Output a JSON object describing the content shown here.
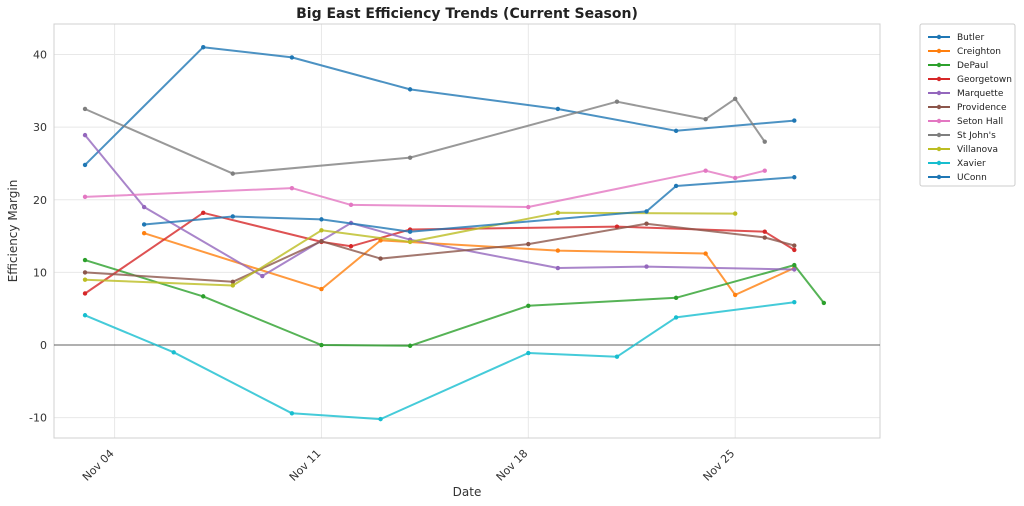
{
  "chart_data": {
    "type": "line",
    "title": "Big East Efficiency Trends (Current Season)",
    "xlabel": "Date",
    "ylabel": "Efficiency Margin",
    "x_unit": "day of November",
    "xlim": [
      1.95,
      29.9
    ],
    "ylim": [
      -12.8,
      44.2
    ],
    "xticks": [
      {
        "value": 4,
        "label": "Nov 04"
      },
      {
        "value": 11,
        "label": "Nov 11"
      },
      {
        "value": 18,
        "label": "Nov 18"
      },
      {
        "value": 25,
        "label": "Nov 25"
      }
    ],
    "yticks": [
      -10,
      0,
      10,
      20,
      30,
      40
    ],
    "grid": true,
    "zero_line": true,
    "legend_position": "outside right",
    "series": [
      {
        "name": "Butler",
        "color": "#1f77b4",
        "points": [
          [
            3,
            24.8
          ],
          [
            7,
            41.0
          ],
          [
            10,
            39.6
          ],
          [
            14,
            35.2
          ],
          [
            19,
            32.5
          ],
          [
            23,
            29.5
          ],
          [
            27,
            30.9
          ]
        ]
      },
      {
        "name": "Creighton",
        "color": "#ff7f0e",
        "points": [
          [
            5,
            15.4
          ],
          [
            11,
            7.7
          ],
          [
            13,
            14.4
          ],
          [
            19,
            13.0
          ],
          [
            24,
            12.6
          ],
          [
            25,
            6.9
          ],
          [
            27,
            10.6
          ]
        ]
      },
      {
        "name": "DePaul",
        "color": "#2ca02c",
        "points": [
          [
            3,
            11.7
          ],
          [
            7,
            6.7
          ],
          [
            11,
            0.0
          ],
          [
            14,
            -0.1
          ],
          [
            18,
            5.4
          ],
          [
            23,
            6.5
          ],
          [
            27,
            11.0
          ],
          [
            28,
            5.8
          ]
        ]
      },
      {
        "name": "Georgetown",
        "color": "#d62728",
        "points": [
          [
            3,
            7.1
          ],
          [
            7,
            18.2
          ],
          [
            11,
            14.2
          ],
          [
            12,
            13.6
          ],
          [
            14,
            15.9
          ],
          [
            21,
            16.3
          ],
          [
            26,
            15.6
          ],
          [
            27,
            13.1
          ]
        ]
      },
      {
        "name": "Marquette",
        "color": "#9467bd",
        "points": [
          [
            3,
            28.9
          ],
          [
            5,
            19.0
          ],
          [
            9,
            9.5
          ],
          [
            12,
            16.8
          ],
          [
            14,
            14.5
          ],
          [
            19,
            10.6
          ],
          [
            22,
            10.8
          ],
          [
            27,
            10.4
          ]
        ]
      },
      {
        "name": "Providence",
        "color": "#8c564b",
        "points": [
          [
            3,
            10.0
          ],
          [
            8,
            8.7
          ],
          [
            11,
            14.3
          ],
          [
            13,
            11.9
          ],
          [
            18,
            13.9
          ],
          [
            22,
            16.7
          ],
          [
            26,
            14.8
          ],
          [
            27,
            13.7
          ]
        ]
      },
      {
        "name": "Seton Hall",
        "color": "#e377c2",
        "points": [
          [
            3,
            20.4
          ],
          [
            10,
            21.6
          ],
          [
            12,
            19.3
          ],
          [
            18,
            19.0
          ],
          [
            24,
            24.0
          ],
          [
            25,
            23.0
          ],
          [
            26,
            24.0
          ]
        ]
      },
      {
        "name": "St John's",
        "color": "#7f7f7f",
        "points": [
          [
            3,
            32.5
          ],
          [
            8,
            23.6
          ],
          [
            14,
            25.8
          ],
          [
            21,
            33.5
          ],
          [
            24,
            31.1
          ],
          [
            25,
            33.9
          ],
          [
            26,
            28.0
          ]
        ]
      },
      {
        "name": "Villanova",
        "color": "#bcbd22",
        "points": [
          [
            3,
            9.0
          ],
          [
            8,
            8.2
          ],
          [
            11,
            15.8
          ],
          [
            14,
            14.2
          ],
          [
            19,
            18.2
          ],
          [
            25,
            18.1
          ]
        ]
      },
      {
        "name": "Xavier",
        "color": "#17becf",
        "points": [
          [
            3,
            4.1
          ],
          [
            6,
            -1.0
          ],
          [
            10,
            -9.4
          ],
          [
            13,
            -10.2
          ],
          [
            18,
            -1.1
          ],
          [
            21,
            -1.6
          ],
          [
            23,
            3.8
          ],
          [
            27,
            5.9
          ]
        ]
      },
      {
        "name": "UConn",
        "color": "#1f77b4",
        "points": [
          [
            5,
            16.6
          ],
          [
            8,
            17.7
          ],
          [
            11,
            17.3
          ],
          [
            14,
            15.6
          ],
          [
            22,
            18.4
          ],
          [
            23,
            21.9
          ],
          [
            27,
            23.1
          ]
        ]
      }
    ]
  }
}
